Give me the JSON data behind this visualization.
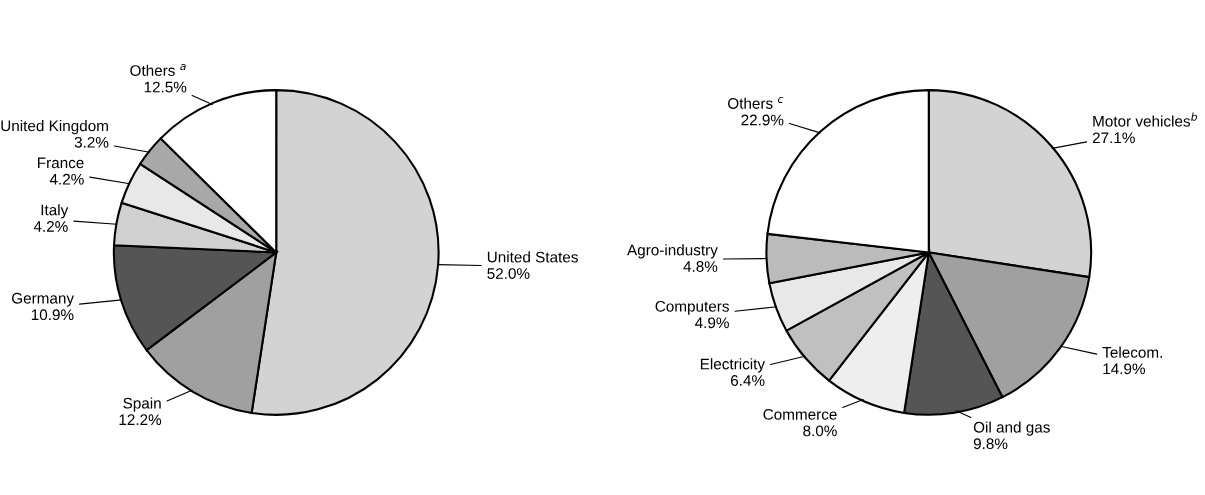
{
  "chart_data": [
    {
      "type": "pie",
      "categories": [
        "United States",
        "Spain",
        "Germany",
        "Italy",
        "France",
        "United Kingdom",
        "Others $^{a}$"
      ],
      "values": [
        52.0,
        12.2,
        10.9,
        4.2,
        4.2,
        3.2,
        12.5
      ],
      "value_labels": [
        "52.0%",
        "12.2%",
        "10.9%",
        "4.2%",
        "4.2%",
        "3.2%",
        "12.5%"
      ],
      "colors": [
        "#d3d3d3",
        "#a0a0a0",
        "#555555",
        "#d0d0d0",
        "#e8e8e8",
        "#a8a8a8",
        "#ffffff"
      ]
    },
    {
      "type": "pie",
      "categories": [
        "Motor vehicles$^{b}$",
        "Telecom.",
        "Oil and gas",
        "Commerce",
        "Electricity",
        "Computers",
        "Agro-industry",
        "Others $^{c}$"
      ],
      "values": [
        27.1,
        14.9,
        9.8,
        8.0,
        6.4,
        4.9,
        4.8,
        22.9
      ],
      "value_labels": [
        "27.1%",
        "14.9%",
        "9.8%",
        "8.0%",
        "6.4%",
        "4.9%",
        "4.8%",
        "22.9%"
      ],
      "colors": [
        "#d3d3d3",
        "#a0a0a0",
        "#555555",
        "#eeeeee",
        "#c0c0c0",
        "#e8e8e8",
        "#bbbbbb",
        "#ffffff"
      ]
    }
  ]
}
